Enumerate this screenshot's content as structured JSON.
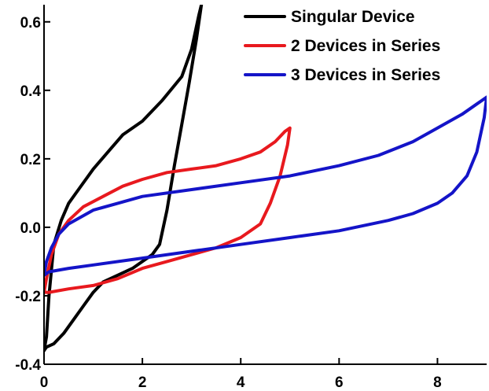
{
  "chart_data": {
    "type": "line",
    "title": "",
    "xlabel": "",
    "ylabel": "",
    "xlim": [
      0,
      9
    ],
    "ylim": [
      -0.4,
      0.65
    ],
    "x_ticks": [
      0,
      2,
      4,
      6,
      8
    ],
    "y_ticks": [
      -0.4,
      -0.2,
      0.0,
      0.2,
      0.4,
      0.6
    ],
    "y_tick_labels": [
      "-0.4",
      "-0.2",
      "0.0",
      "0.2",
      "0.4",
      "0.6"
    ],
    "x_tick_labels": [
      "0",
      "2",
      "4",
      "6",
      "8"
    ],
    "grid": false,
    "legend_position": "top-right",
    "series": [
      {
        "name": "Singular Device",
        "color": "#000000",
        "points": [
          [
            0,
            -0.36
          ],
          [
            0.05,
            -0.32
          ],
          [
            0.1,
            -0.2
          ],
          [
            0.2,
            -0.05
          ],
          [
            0.35,
            0.02
          ],
          [
            0.5,
            0.07
          ],
          [
            0.7,
            0.11
          ],
          [
            1.0,
            0.17
          ],
          [
            1.3,
            0.22
          ],
          [
            1.6,
            0.27
          ],
          [
            2.0,
            0.31
          ],
          [
            2.4,
            0.37
          ],
          [
            2.8,
            0.44
          ],
          [
            3.0,
            0.52
          ],
          [
            3.15,
            0.62
          ],
          [
            3.2,
            0.65
          ],
          [
            3.1,
            0.55
          ],
          [
            2.95,
            0.42
          ],
          [
            2.8,
            0.3
          ],
          [
            2.65,
            0.18
          ],
          [
            2.5,
            0.05
          ],
          [
            2.35,
            -0.05
          ],
          [
            2.2,
            -0.08
          ],
          [
            2.0,
            -0.1
          ],
          [
            1.8,
            -0.12
          ],
          [
            1.5,
            -0.14
          ],
          [
            1.2,
            -0.16
          ],
          [
            1.0,
            -0.19
          ],
          [
            0.8,
            -0.23
          ],
          [
            0.6,
            -0.27
          ],
          [
            0.4,
            -0.31
          ],
          [
            0.2,
            -0.34
          ],
          [
            0.05,
            -0.35
          ],
          [
            0,
            -0.36
          ]
        ]
      },
      {
        "name": "2 Devices in Series",
        "color": "#e8191e",
        "points": [
          [
            0,
            -0.19
          ],
          [
            0.05,
            -0.15
          ],
          [
            0.15,
            -0.08
          ],
          [
            0.3,
            -0.02
          ],
          [
            0.5,
            0.02
          ],
          [
            0.8,
            0.06
          ],
          [
            1.2,
            0.09
          ],
          [
            1.6,
            0.12
          ],
          [
            2.0,
            0.14
          ],
          [
            2.5,
            0.16
          ],
          [
            3.0,
            0.17
          ],
          [
            3.5,
            0.18
          ],
          [
            4.0,
            0.2
          ],
          [
            4.4,
            0.22
          ],
          [
            4.7,
            0.25
          ],
          [
            4.9,
            0.28
          ],
          [
            5.0,
            0.29
          ],
          [
            4.95,
            0.24
          ],
          [
            4.8,
            0.15
          ],
          [
            4.6,
            0.07
          ],
          [
            4.4,
            0.01
          ],
          [
            4.0,
            -0.03
          ],
          [
            3.5,
            -0.06
          ],
          [
            3.0,
            -0.08
          ],
          [
            2.5,
            -0.1
          ],
          [
            2.0,
            -0.12
          ],
          [
            1.5,
            -0.15
          ],
          [
            1.0,
            -0.17
          ],
          [
            0.5,
            -0.18
          ],
          [
            0.1,
            -0.19
          ],
          [
            0,
            -0.19
          ]
        ]
      },
      {
        "name": "3 Devices in Series",
        "color": "#1414c8",
        "points": [
          [
            0,
            -0.14
          ],
          [
            0.05,
            -0.1
          ],
          [
            0.15,
            -0.06
          ],
          [
            0.3,
            -0.02
          ],
          [
            0.5,
            0.01
          ],
          [
            1.0,
            0.05
          ],
          [
            1.5,
            0.07
          ],
          [
            2.0,
            0.09
          ],
          [
            3.0,
            0.11
          ],
          [
            4.0,
            0.13
          ],
          [
            5.0,
            0.15
          ],
          [
            6.0,
            0.18
          ],
          [
            6.8,
            0.21
          ],
          [
            7.5,
            0.25
          ],
          [
            8.0,
            0.29
          ],
          [
            8.5,
            0.33
          ],
          [
            8.8,
            0.36
          ],
          [
            9.0,
            0.38
          ],
          [
            8.95,
            0.32
          ],
          [
            8.8,
            0.22
          ],
          [
            8.6,
            0.15
          ],
          [
            8.3,
            0.1
          ],
          [
            8.0,
            0.07
          ],
          [
            7.5,
            0.04
          ],
          [
            7.0,
            0.02
          ],
          [
            6.0,
            -0.01
          ],
          [
            5.0,
            -0.03
          ],
          [
            4.0,
            -0.05
          ],
          [
            3.0,
            -0.07
          ],
          [
            2.0,
            -0.09
          ],
          [
            1.0,
            -0.11
          ],
          [
            0.5,
            -0.12
          ],
          [
            0.1,
            -0.13
          ],
          [
            0,
            -0.14
          ]
        ]
      }
    ]
  }
}
